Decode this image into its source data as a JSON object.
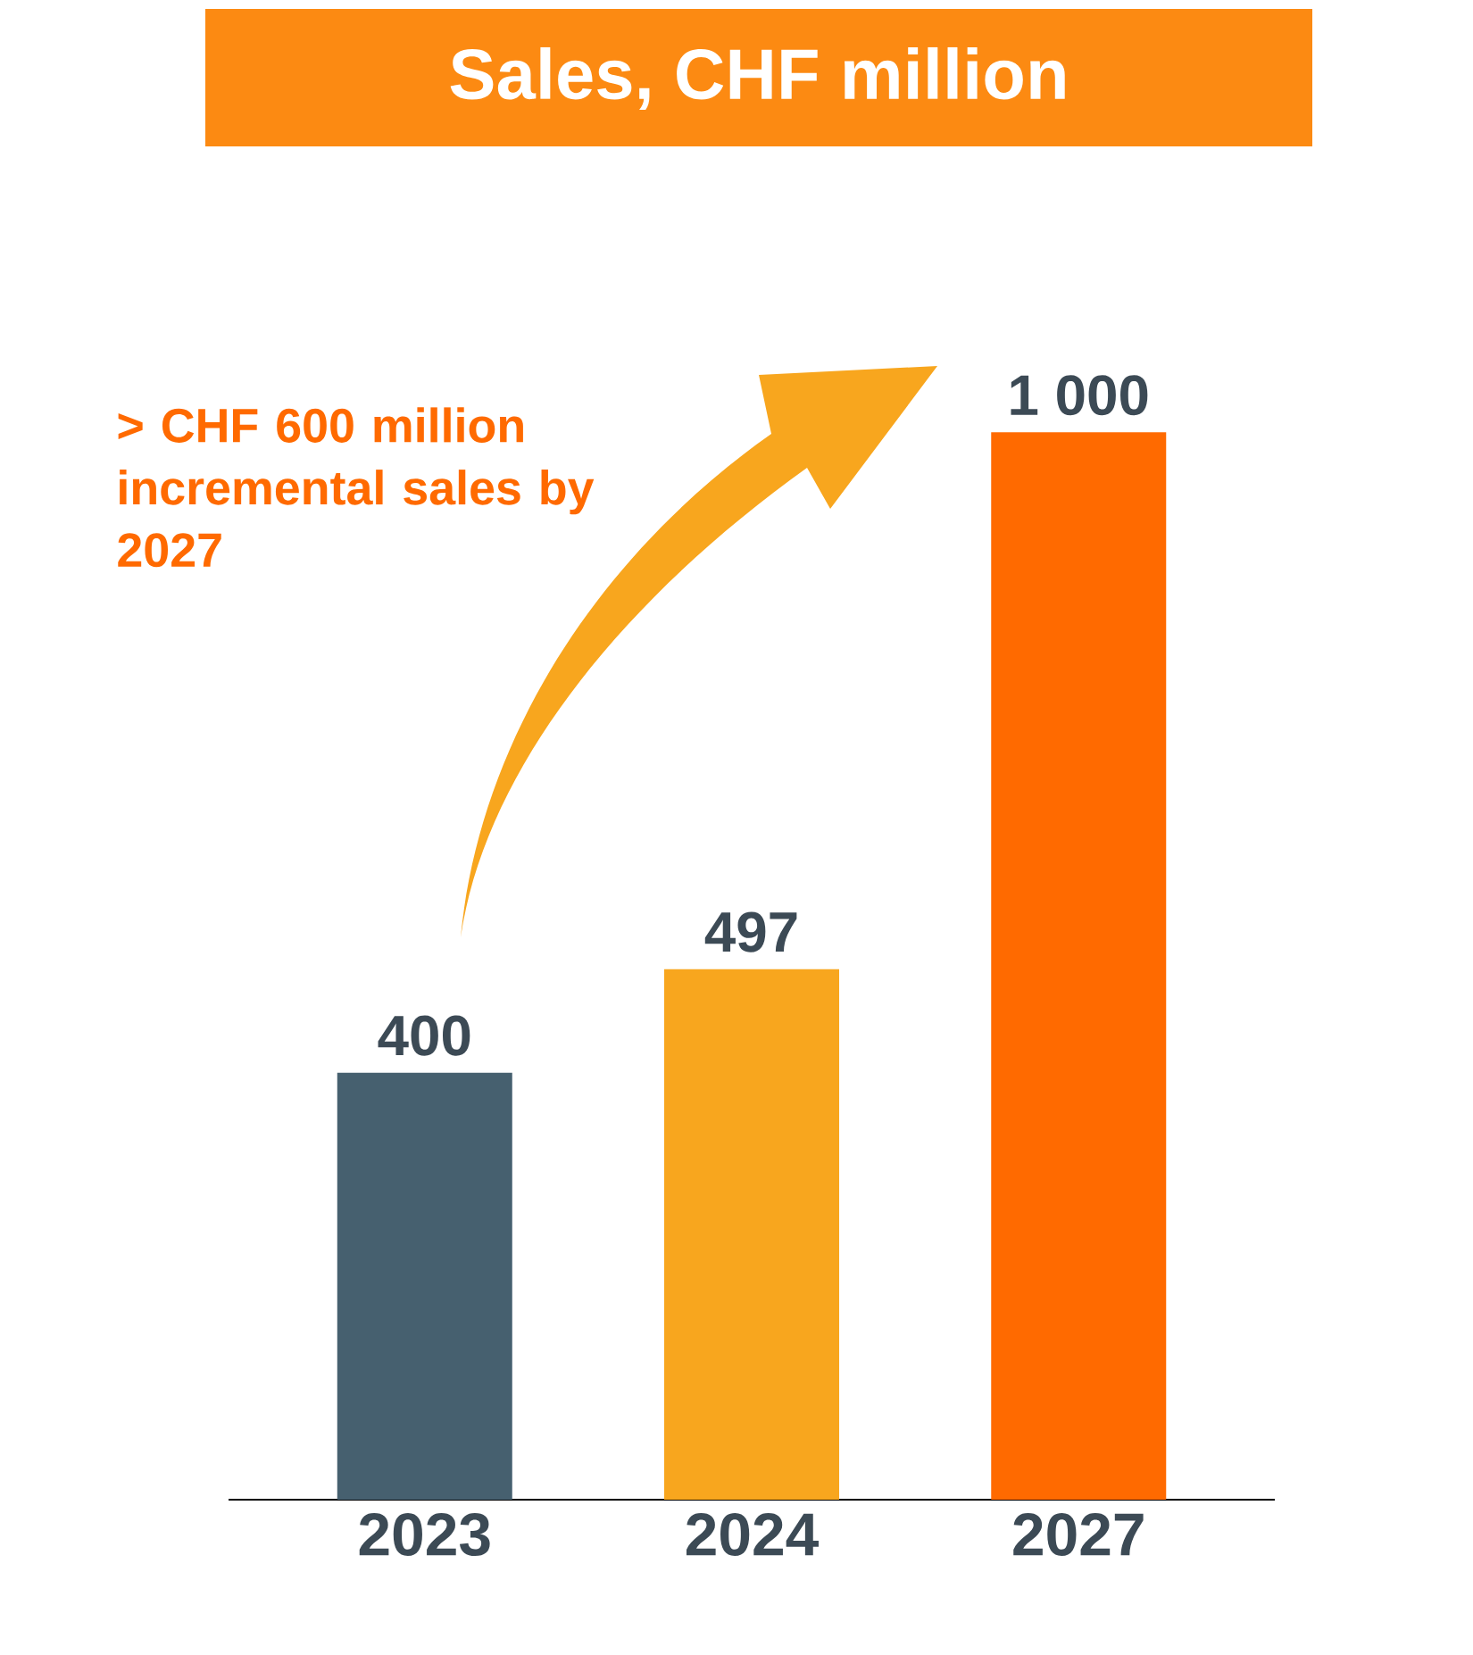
{
  "chart_data": {
    "type": "bar",
    "title": "Sales, CHF million",
    "categories": [
      "2023",
      "2024",
      "2027"
    ],
    "values": [
      400,
      497,
      1000
    ],
    "value_labels": [
      "400",
      "497",
      "1 000"
    ],
    "colors": [
      "#46606f",
      "#f8a61e",
      "#ff6a00"
    ],
    "annotations": [
      "> CHF 600 million incremental sales by 2027"
    ]
  }
}
